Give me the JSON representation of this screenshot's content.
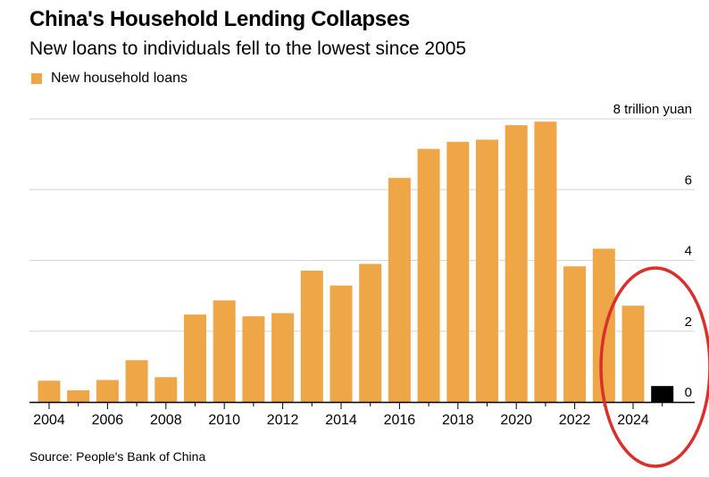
{
  "title": "China's Household Lending Collapses",
  "subtitle": "New loans to individuals fell to the lowest since 2005",
  "legend": {
    "label": "New household loans",
    "color": "#EFA646"
  },
  "source": "Source: People's Bank of China",
  "highlight_color": "#000000",
  "annotation_color": "#D9302C",
  "chart_data": {
    "type": "bar",
    "title": "China's Household Lending Collapses",
    "subtitle": "New loans to individuals fell to the lowest since 2005",
    "series": [
      {
        "name": "New household loans",
        "color": "#EFA646"
      }
    ],
    "categories": [
      "2004",
      "2005",
      "2006",
      "2007",
      "2008",
      "2009",
      "2010",
      "2011",
      "2012",
      "2013",
      "2014",
      "2015",
      "2016",
      "2017",
      "2018",
      "2019",
      "2020",
      "2021",
      "2022",
      "2023",
      "2024",
      "2025"
    ],
    "values": [
      0.6,
      0.33,
      0.62,
      1.18,
      0.7,
      2.47,
      2.87,
      2.42,
      2.51,
      3.71,
      3.29,
      3.9,
      6.33,
      7.15,
      7.35,
      7.41,
      7.82,
      7.92,
      3.83,
      4.33,
      2.72,
      0.45
    ],
    "highlighted_category": "2025",
    "ylim": [
      0,
      8
    ],
    "yticks": [
      0,
      2,
      4,
      6,
      8
    ],
    "ytick_labels": [
      "0",
      "2",
      "4",
      "6",
      "8 trillion yuan"
    ],
    "xticks": [
      "2004",
      "2006",
      "2008",
      "2010",
      "2012",
      "2014",
      "2016",
      "2018",
      "2020",
      "2022",
      "2024"
    ],
    "grid": true,
    "y_axis_position": "right",
    "legend_position": "top-left",
    "annotation": "red ellipse around 2024-2025 bars"
  }
}
